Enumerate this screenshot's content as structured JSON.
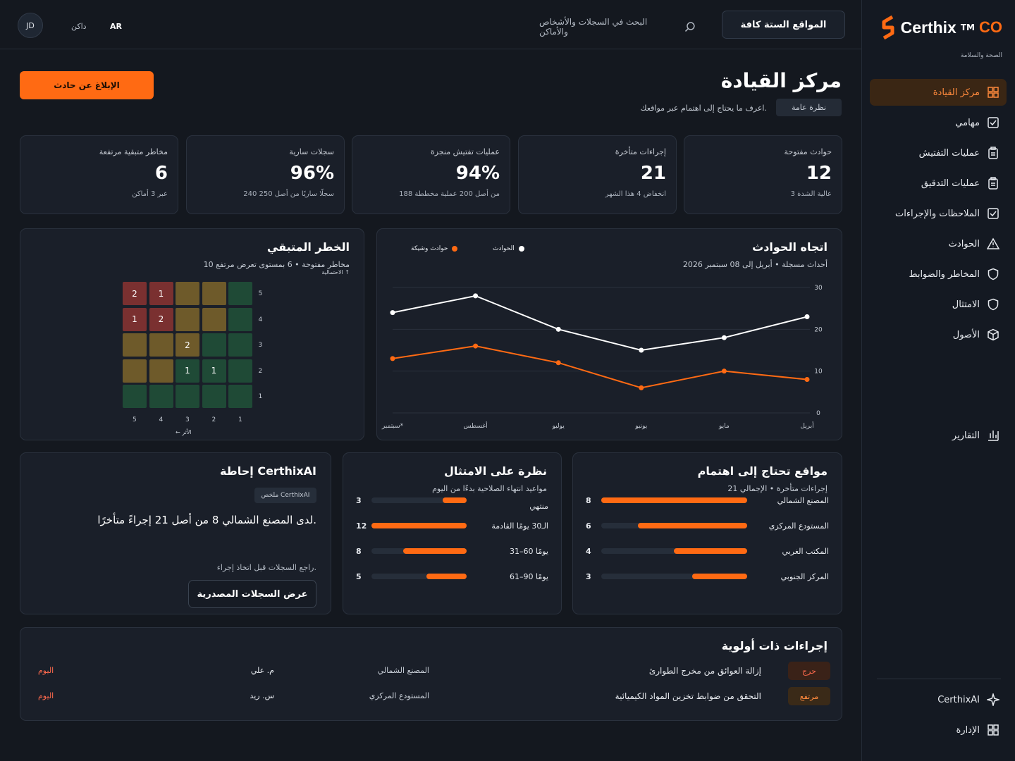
{
  "brand": {
    "name": "Certhix",
    "tm": "TM",
    "co": "CO",
    "tagline": "الصحة والسلامة"
  },
  "sidebar": {
    "items": [
      {
        "label": "مركز القيادة",
        "icon": "grid-icon",
        "active": true
      },
      {
        "label": "مهامي",
        "icon": "checkbox-icon"
      },
      {
        "label": "عمليات التفتيش",
        "icon": "clipboard-icon"
      },
      {
        "label": "عمليات التدقيق",
        "icon": "clipboard-icon"
      },
      {
        "label": "الملاحظات والإجراءات",
        "icon": "checkbox-icon"
      },
      {
        "label": "الحوادث",
        "icon": "warning-icon"
      },
      {
        "label": "المخاطر والضوابط",
        "icon": "shield-icon"
      },
      {
        "label": "الامتثال",
        "icon": "shield-icon"
      },
      {
        "label": "الأصول",
        "icon": "box-icon"
      },
      {
        "label": "التقارير",
        "icon": "bar-chart-icon"
      }
    ],
    "footer": [
      {
        "label": "CerthixAI",
        "icon": "sparkle-icon"
      },
      {
        "label": "الإدارة",
        "icon": "grid-icon"
      }
    ]
  },
  "topbar": {
    "avatar": "JD",
    "theme": "داكن",
    "lang": "AR",
    "search_placeholder": "البحث في السجلات والأشخاص والأماكن",
    "sites_button": "المواقع الستة كافة"
  },
  "header": {
    "title": "مركز القيادة",
    "tag": "نظرة عامة",
    "subtitle": "اعرف ما يحتاج إلى اهتمام عبر مواقعك.",
    "report_button": "الإبلاغ عن حادث"
  },
  "kpis": [
    {
      "label": "حوادث مفتوحة",
      "value": "12",
      "note": "3 عالية الشدة"
    },
    {
      "label": "إجراءات متأخرة",
      "value": "21",
      "note": "انخفاض 4 هذا الشهر"
    },
    {
      "label": "عمليات تفتيش منجزة",
      "value": "94%",
      "note": "188 من أصل 200 عملية مخططة"
    },
    {
      "label": "سجلات سارية",
      "value": "96%",
      "note": "240 سجلًا ساريًا من أصل 250"
    },
    {
      "label": "مخاطر متبقية مرتفعة",
      "value": "6",
      "note": "عبر 3 أماكن"
    }
  ],
  "trend": {
    "title": "اتجاه الحوادث",
    "subtitle": "أحداث مسجلة • أبريل إلى 08 سبتمبر 2026",
    "legend": {
      "incidents": "الحوادث",
      "near_miss": "حوادث وشيكة"
    },
    "colors": {
      "incidents": "#ffffff",
      "near_miss": "#ff6a13"
    }
  },
  "chart_data": {
    "type": "line",
    "x": [
      "أبريل",
      "مايو",
      "يونيو",
      "يوليو",
      "أغسطس",
      "سبتمبر*"
    ],
    "series": [
      {
        "name": "الحوادث",
        "values": [
          23,
          18,
          15,
          20,
          28,
          24
        ]
      },
      {
        "name": "حوادث وشيكة",
        "values": [
          8,
          10,
          6,
          12,
          16,
          13
        ]
      }
    ],
    "yticks": [
      "0",
      "10",
      "20",
      "30"
    ],
    "ylim": [
      0,
      30
    ],
    "grid": true,
    "legend": "top-left"
  },
  "risk": {
    "title": "الخطر المتبقي",
    "subtitle": "10 مخاطر مفتوحة • 6 بمستوى تعرض مرتفع",
    "y_hint": "الاحتمالية ↑",
    "x_hint": "← الأثر",
    "rows": [
      "5",
      "4",
      "3",
      "2",
      "1"
    ],
    "cols": [
      "5",
      "4",
      "3",
      "2",
      "1"
    ],
    "cells": [
      [
        "2",
        "1",
        "",
        "",
        ""
      ],
      [
        "1",
        "2",
        "",
        "",
        ""
      ],
      [
        "",
        "",
        "2",
        "",
        ""
      ],
      [
        "",
        "",
        "1",
        "1",
        ""
      ],
      [
        "",
        "",
        "",
        "",
        ""
      ]
    ],
    "levels": [
      [
        "high",
        "high",
        "med",
        "med",
        "low"
      ],
      [
        "high",
        "high",
        "med",
        "med",
        "low"
      ],
      [
        "med",
        "med",
        "med",
        "low",
        "low"
      ],
      [
        "med",
        "med",
        "low",
        "low",
        "low"
      ],
      [
        "low",
        "low",
        "low",
        "low",
        "low"
      ]
    ],
    "colors": {
      "high": "#7a3030",
      "med": "#6e5a2a",
      "low": "#1f4a36"
    }
  },
  "attention": {
    "title": "مواقع تحتاج إلى اهتمام",
    "subtitle": "إجراءات متأخرة • الإجمالي 21",
    "rows": [
      {
        "label": "المصنع الشمالي",
        "value": "8",
        "fraction": 1.0
      },
      {
        "label": "المستودع المركزي",
        "value": "6",
        "fraction": 0.75
      },
      {
        "label": "المكتب الغربي",
        "value": "4",
        "fraction": 0.5
      },
      {
        "label": "المركز الجنوبي",
        "value": "3",
        "fraction": 0.375
      }
    ]
  },
  "compliance": {
    "title": "نظرة على الامتثال",
    "subtitle": "مواعيد انتهاء الصلاحية بدءًا من اليوم",
    "rows": [
      {
        "label": "منتهي",
        "value": "3",
        "fraction": 0.25
      },
      {
        "label": "الـ30 يومًا القادمة",
        "value": "12",
        "fraction": 1.0
      },
      {
        "label": "31–60 يومًا",
        "value": "8",
        "fraction": 0.67
      },
      {
        "label": "61–90 يومًا",
        "value": "5",
        "fraction": 0.42
      }
    ]
  },
  "ai": {
    "title": "إحاطة CerthixAI",
    "chip": "ملخص CerthixAI",
    "text": "لدى المصنع الشمالي 8 من أصل 21 إجراءً متأخرًا.",
    "hint": "راجع السجلات قبل اتخاذ إجراء.",
    "button": "عرض السجلات المصدرية"
  },
  "priority": {
    "title": "إجراءات ذات أولوية",
    "rows": [
      {
        "badge": "حرج",
        "badge_color": "#ff6a4d",
        "badge_bg": "#3a2218",
        "task": "إزالة العوائق من مخرج الطوارئ",
        "site": "المصنع الشمالي",
        "owner": "م. علي",
        "due": "اليوم"
      },
      {
        "badge": "مرتفع",
        "badge_color": "#ff8a3d",
        "badge_bg": "#3a2a18",
        "task": "التحقق من ضوابط تخزين المواد الكيميائية",
        "site": "المستودع المركزي",
        "owner": "س. ريد",
        "due": "اليوم"
      }
    ]
  }
}
